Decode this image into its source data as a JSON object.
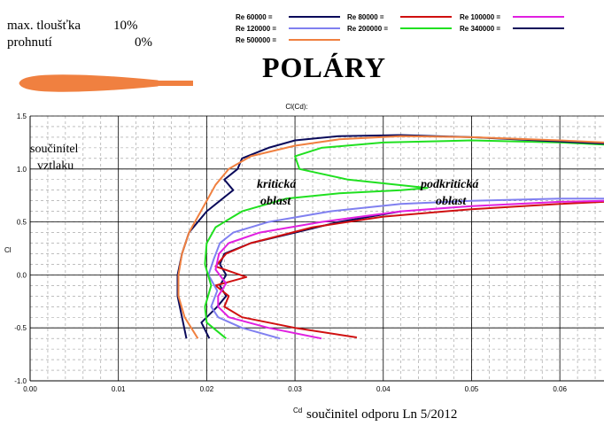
{
  "info": {
    "thickness_label": "max. tloušťka",
    "thickness_value": "10%",
    "camber_label": "prohnutí",
    "camber_value": "0%"
  },
  "page_title": "POLÁRY",
  "footer_note": "součinitel  odporu   Ln 5/2012",
  "annotations": {
    "cl_label_line1": "součinitel",
    "cl_label_line2": "vztlaku",
    "critical_line1": "kritická",
    "critical_line2": "oblast",
    "subcritical_line1": "podkritická",
    "subcritical_line2": "oblast"
  },
  "chart_data": {
    "type": "line",
    "title": "Cl(Cd):",
    "xlabel": "Cd",
    "ylabel": "Cl",
    "xlim": [
      0.0,
      0.065
    ],
    "ylim": [
      -1.0,
      1.5
    ],
    "xticks": [
      "0.00",
      "0.01",
      "0.02",
      "0.03",
      "0.04",
      "0.05",
      "0.06"
    ],
    "yticks": [
      "-1.0",
      "-0.5",
      "0.0",
      "0.5",
      "1.0",
      "1.5"
    ],
    "grid": true,
    "legend_position": "top-right",
    "series": [
      {
        "name": "Re 60000 =",
        "color": "#0a0a5a",
        "x": [
          0.0203,
          0.0194,
          0.0212,
          0.0222,
          0.0215,
          0.0222,
          0.0215,
          0.022,
          0.025,
          0.03,
          0.035,
          0.042
        ],
        "y": [
          -0.6,
          -0.45,
          -0.3,
          -0.2,
          -0.1,
          0.0,
          0.1,
          0.2,
          0.3,
          0.4,
          0.5,
          0.6
        ]
      },
      {
        "name": "Re 80000 =",
        "color": "#d01010",
        "x": [
          0.037,
          0.03,
          0.024,
          0.022,
          0.0225,
          0.021,
          0.0245,
          0.021,
          0.0222,
          0.025,
          0.032,
          0.04,
          0.05,
          0.06,
          0.065
        ],
        "y": [
          -0.59,
          -0.5,
          -0.4,
          -0.3,
          -0.2,
          -0.1,
          -0.02,
          0.08,
          0.2,
          0.3,
          0.45,
          0.55,
          0.62,
          0.67,
          0.69
        ]
      },
      {
        "name": "Re 100000 =",
        "color": "#e020e0",
        "x": [
          0.033,
          0.027,
          0.0225,
          0.0213,
          0.0213,
          0.0222,
          0.021,
          0.0214,
          0.0225,
          0.026,
          0.033,
          0.042,
          0.05,
          0.06,
          0.065
        ],
        "y": [
          -0.6,
          -0.5,
          -0.4,
          -0.3,
          -0.2,
          -0.08,
          0.05,
          0.2,
          0.3,
          0.4,
          0.5,
          0.6,
          0.65,
          0.69,
          0.7
        ]
      },
      {
        "name": "Re 120000 =",
        "color": "#8080f0",
        "x": [
          0.0283,
          0.024,
          0.0213,
          0.0205,
          0.0212,
          0.0202,
          0.0208,
          0.0215,
          0.023,
          0.027,
          0.034,
          0.042,
          0.05,
          0.06,
          0.065
        ],
        "y": [
          -0.6,
          -0.5,
          -0.4,
          -0.3,
          -0.15,
          0.0,
          0.15,
          0.3,
          0.4,
          0.5,
          0.6,
          0.67,
          0.7,
          0.72,
          0.72
        ]
      },
      {
        "name": "Re 200000 =",
        "color": "#20e020",
        "x": [
          0.0222,
          0.02,
          0.0198,
          0.0205,
          0.0198,
          0.02,
          0.021,
          0.024,
          0.029,
          0.035,
          0.042,
          0.045,
          0.036,
          0.0305,
          0.03,
          0.033,
          0.04,
          0.05,
          0.06,
          0.065
        ],
        "y": [
          -0.6,
          -0.45,
          -0.3,
          -0.1,
          0.1,
          0.3,
          0.45,
          0.6,
          0.72,
          0.77,
          0.8,
          0.82,
          0.9,
          1.0,
          1.12,
          1.2,
          1.25,
          1.27,
          1.25,
          1.23
        ]
      },
      {
        "name": "Re 340000 =",
        "color": "#0a0a5a",
        "x": [
          0.0177,
          0.0172,
          0.0167,
          0.0167,
          0.0172,
          0.018,
          0.02,
          0.023,
          0.022,
          0.0235,
          0.024,
          0.027,
          0.03,
          0.035,
          0.042,
          0.05,
          0.06,
          0.065
        ],
        "y": [
          -0.6,
          -0.4,
          -0.2,
          0.0,
          0.2,
          0.4,
          0.6,
          0.8,
          0.9,
          1.0,
          1.1,
          1.2,
          1.27,
          1.31,
          1.32,
          1.3,
          1.26,
          1.24
        ]
      },
      {
        "name": "Re 500000 =",
        "color": "#f08040",
        "x": [
          0.019,
          0.0175,
          0.0168,
          0.0168,
          0.0172,
          0.018,
          0.019,
          0.02,
          0.021,
          0.0225,
          0.025,
          0.03,
          0.035,
          0.042,
          0.05,
          0.06,
          0.065
        ],
        "y": [
          -0.6,
          -0.4,
          -0.2,
          0.0,
          0.2,
          0.4,
          0.55,
          0.7,
          0.85,
          1.0,
          1.12,
          1.22,
          1.28,
          1.31,
          1.3,
          1.27,
          1.25
        ]
      }
    ]
  },
  "profile_icon": "airfoil-profile-icon",
  "profile_color": "#f08040"
}
